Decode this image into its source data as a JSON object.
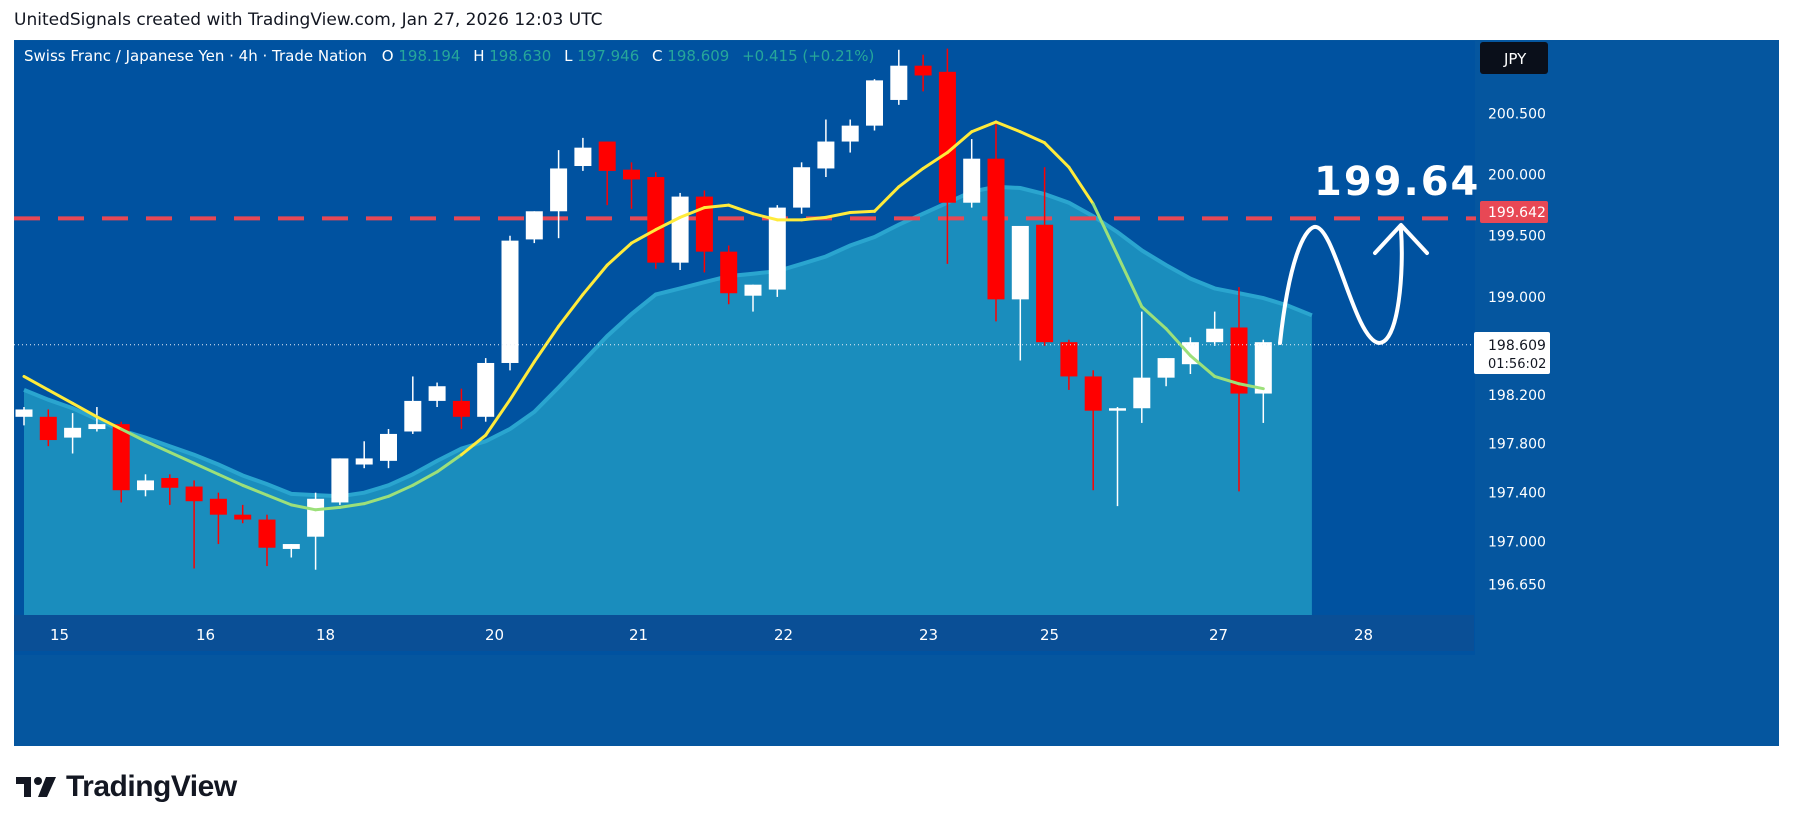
{
  "header": {
    "text": "UnitedSignals created with TradingView.com, Jan 27, 2026 12:03 UTC"
  },
  "legend": {
    "symbol": "Swiss Franc  / Japanese Yen · 4h · Trade Nation",
    "o_label": "O",
    "o_value": "198.194",
    "h_label": "H",
    "h_value": "198.630",
    "l_label": "L",
    "l_value": "197.946",
    "c_label": "C",
    "c_value": "198.609",
    "change": "+0.415 (+0.21%)"
  },
  "currency_badge": "JPY",
  "last_price_label": {
    "price": "198.609",
    "countdown": "01:56:02"
  },
  "target_label": {
    "price": "199.642"
  },
  "annotation": {
    "text": "199.64"
  },
  "brand": {
    "name": "TradingView"
  },
  "colors": {
    "background": "#0052a0",
    "panel": "#05569f",
    "area_fill": "#1a8dbd",
    "area_line": "#2aa5cf",
    "up_candle": "#ffffff",
    "down_candle": "#ff0000",
    "ma_line_yellow": "#ffeb3b",
    "ma_line_green": "#9ce07a",
    "target_line": "#e84855",
    "axis_text": "#ffffff",
    "legend_value": "#26a69a"
  },
  "chart_data": {
    "type": "candlestick",
    "title": "Swiss Franc  / Japanese Yen · 4h · Trade Nation",
    "ylim": [
      196.4,
      201.1
    ],
    "y_ticks": [
      "196.650",
      "197.000",
      "197.400",
      "197.800",
      "198.200",
      "199.000",
      "199.500",
      "200.000",
      "200.500"
    ],
    "x_ticks": [
      "15",
      "18",
      "21",
      "22",
      "23",
      "25",
      "27",
      "28"
    ],
    "x_ticks_all": [
      "15",
      "16",
      "18",
      "20",
      "21",
      "22",
      "23",
      "25",
      "27",
      "28"
    ],
    "candles": [
      {
        "o": 198.02,
        "h": 198.1,
        "l": 197.95,
        "c": 198.08
      },
      {
        "o": 198.02,
        "h": 198.08,
        "l": 197.78,
        "c": 197.83
      },
      {
        "o": 197.85,
        "h": 198.05,
        "l": 197.72,
        "c": 197.93
      },
      {
        "o": 197.92,
        "h": 198.1,
        "l": 197.9,
        "c": 197.96
      },
      {
        "o": 197.96,
        "h": 197.98,
        "l": 197.32,
        "c": 197.42
      },
      {
        "o": 197.42,
        "h": 197.55,
        "l": 197.37,
        "c": 197.5
      },
      {
        "o": 197.52,
        "h": 197.55,
        "l": 197.3,
        "c": 197.44
      },
      {
        "o": 197.45,
        "h": 197.5,
        "l": 196.78,
        "c": 197.33
      },
      {
        "o": 197.35,
        "h": 197.4,
        "l": 196.98,
        "c": 197.22
      },
      {
        "o": 197.22,
        "h": 197.3,
        "l": 197.15,
        "c": 197.18
      },
      {
        "o": 197.18,
        "h": 197.22,
        "l": 196.8,
        "c": 196.95
      },
      {
        "o": 196.94,
        "h": 196.98,
        "l": 196.87,
        "c": 196.98
      },
      {
        "o": 197.04,
        "h": 197.4,
        "l": 196.77,
        "c": 197.35
      },
      {
        "o": 197.32,
        "h": 197.68,
        "l": 197.3,
        "c": 197.68
      },
      {
        "o": 197.63,
        "h": 197.82,
        "l": 197.6,
        "c": 197.68
      },
      {
        "o": 197.66,
        "h": 197.92,
        "l": 197.6,
        "c": 197.88
      },
      {
        "o": 197.9,
        "h": 198.35,
        "l": 197.88,
        "c": 198.15
      },
      {
        "o": 198.15,
        "h": 198.3,
        "l": 198.1,
        "c": 198.27
      },
      {
        "o": 198.15,
        "h": 198.25,
        "l": 197.92,
        "c": 198.02
      },
      {
        "o": 198.02,
        "h": 198.5,
        "l": 197.98,
        "c": 198.46
      },
      {
        "o": 198.46,
        "h": 199.5,
        "l": 198.4,
        "c": 199.46
      },
      {
        "o": 199.47,
        "h": 199.7,
        "l": 199.44,
        "c": 199.7
      },
      {
        "o": 199.7,
        "h": 200.2,
        "l": 199.48,
        "c": 200.05
      },
      {
        "o": 200.07,
        "h": 200.3,
        "l": 200.03,
        "c": 200.22
      },
      {
        "o": 200.27,
        "h": 200.27,
        "l": 199.75,
        "c": 200.03
      },
      {
        "o": 200.04,
        "h": 200.1,
        "l": 199.72,
        "c": 199.96
      },
      {
        "o": 199.98,
        "h": 200.02,
        "l": 199.23,
        "c": 199.28
      },
      {
        "o": 199.28,
        "h": 199.85,
        "l": 199.22,
        "c": 199.82
      },
      {
        "o": 199.82,
        "h": 199.87,
        "l": 199.2,
        "c": 199.37
      },
      {
        "o": 199.37,
        "h": 199.42,
        "l": 198.94,
        "c": 199.03
      },
      {
        "o": 199.01,
        "h": 199.1,
        "l": 198.88,
        "c": 199.1
      },
      {
        "o": 199.06,
        "h": 199.75,
        "l": 199.0,
        "c": 199.73
      },
      {
        "o": 199.73,
        "h": 200.1,
        "l": 199.68,
        "c": 200.06
      },
      {
        "o": 200.05,
        "h": 200.45,
        "l": 199.98,
        "c": 200.27
      },
      {
        "o": 200.27,
        "h": 200.45,
        "l": 200.18,
        "c": 200.4
      },
      {
        "o": 200.4,
        "h": 200.78,
        "l": 200.36,
        "c": 200.77
      },
      {
        "o": 200.61,
        "h": 201.02,
        "l": 200.57,
        "c": 200.89
      },
      {
        "o": 200.89,
        "h": 200.98,
        "l": 200.68,
        "c": 200.81
      },
      {
        "o": 200.84,
        "h": 201.03,
        "l": 199.27,
        "c": 199.77
      },
      {
        "o": 199.77,
        "h": 200.29,
        "l": 199.73,
        "c": 200.13
      },
      {
        "o": 200.13,
        "h": 200.43,
        "l": 198.8,
        "c": 198.98
      },
      {
        "o": 198.98,
        "h": 199.58,
        "l": 198.48,
        "c": 199.58
      },
      {
        "o": 199.59,
        "h": 200.06,
        "l": 198.6,
        "c": 198.63
      },
      {
        "o": 198.63,
        "h": 198.65,
        "l": 198.24,
        "c": 198.35
      },
      {
        "o": 198.35,
        "h": 198.4,
        "l": 197.42,
        "c": 198.07
      },
      {
        "o": 198.07,
        "h": 198.1,
        "l": 197.29,
        "c": 198.09
      },
      {
        "o": 198.09,
        "h": 198.88,
        "l": 197.97,
        "c": 198.34
      },
      {
        "o": 198.34,
        "h": 198.5,
        "l": 198.27,
        "c": 198.5
      },
      {
        "o": 198.45,
        "h": 198.67,
        "l": 198.37,
        "c": 198.63
      },
      {
        "o": 198.63,
        "h": 198.88,
        "l": 198.6,
        "c": 198.74
      },
      {
        "o": 198.75,
        "h": 199.08,
        "l": 197.41,
        "c": 198.21
      },
      {
        "o": 198.21,
        "h": 198.65,
        "l": 197.97,
        "c": 198.63
      }
    ],
    "series": [
      {
        "type": "line",
        "values": [
          198.35,
          198.24,
          198.13,
          198.02,
          197.92,
          197.82,
          197.73,
          197.64,
          197.55,
          197.46,
          197.38,
          197.3,
          197.26,
          197.28,
          197.31,
          197.37,
          197.46,
          197.57,
          197.71,
          197.87,
          198.16,
          198.47,
          198.76,
          199.02,
          199.26,
          199.44,
          199.55,
          199.65,
          199.73,
          199.75,
          199.68,
          199.63,
          199.63,
          199.65,
          199.69,
          199.7,
          199.9,
          200.05,
          200.18,
          200.35,
          200.43,
          200.35,
          200.26,
          200.06,
          199.76,
          199.34,
          198.92,
          198.74,
          198.52,
          198.35,
          198.29,
          198.25
        ]
      },
      {
        "type": "area",
        "values": [
          198.24,
          198.16,
          198.09,
          198.0,
          197.91,
          197.85,
          197.78,
          197.71,
          197.63,
          197.54,
          197.47,
          197.39,
          197.38,
          197.37,
          197.4,
          197.46,
          197.55,
          197.66,
          197.76,
          197.82,
          197.92,
          198.06,
          198.26,
          198.47,
          198.68,
          198.86,
          199.02,
          199.07,
          199.12,
          199.17,
          199.19,
          199.21,
          199.27,
          199.33,
          199.42,
          199.49,
          199.59,
          199.68,
          199.77,
          199.86,
          199.9,
          199.89,
          199.84,
          199.77,
          199.66,
          199.53,
          199.38,
          199.26,
          199.15,
          199.07,
          199.03,
          198.99,
          198.93,
          198.85
        ]
      }
    ],
    "horizontal_lines": [
      {
        "value": 199.642,
        "style": "dashed"
      },
      {
        "value": 198.609,
        "style": "dotted"
      }
    ]
  }
}
